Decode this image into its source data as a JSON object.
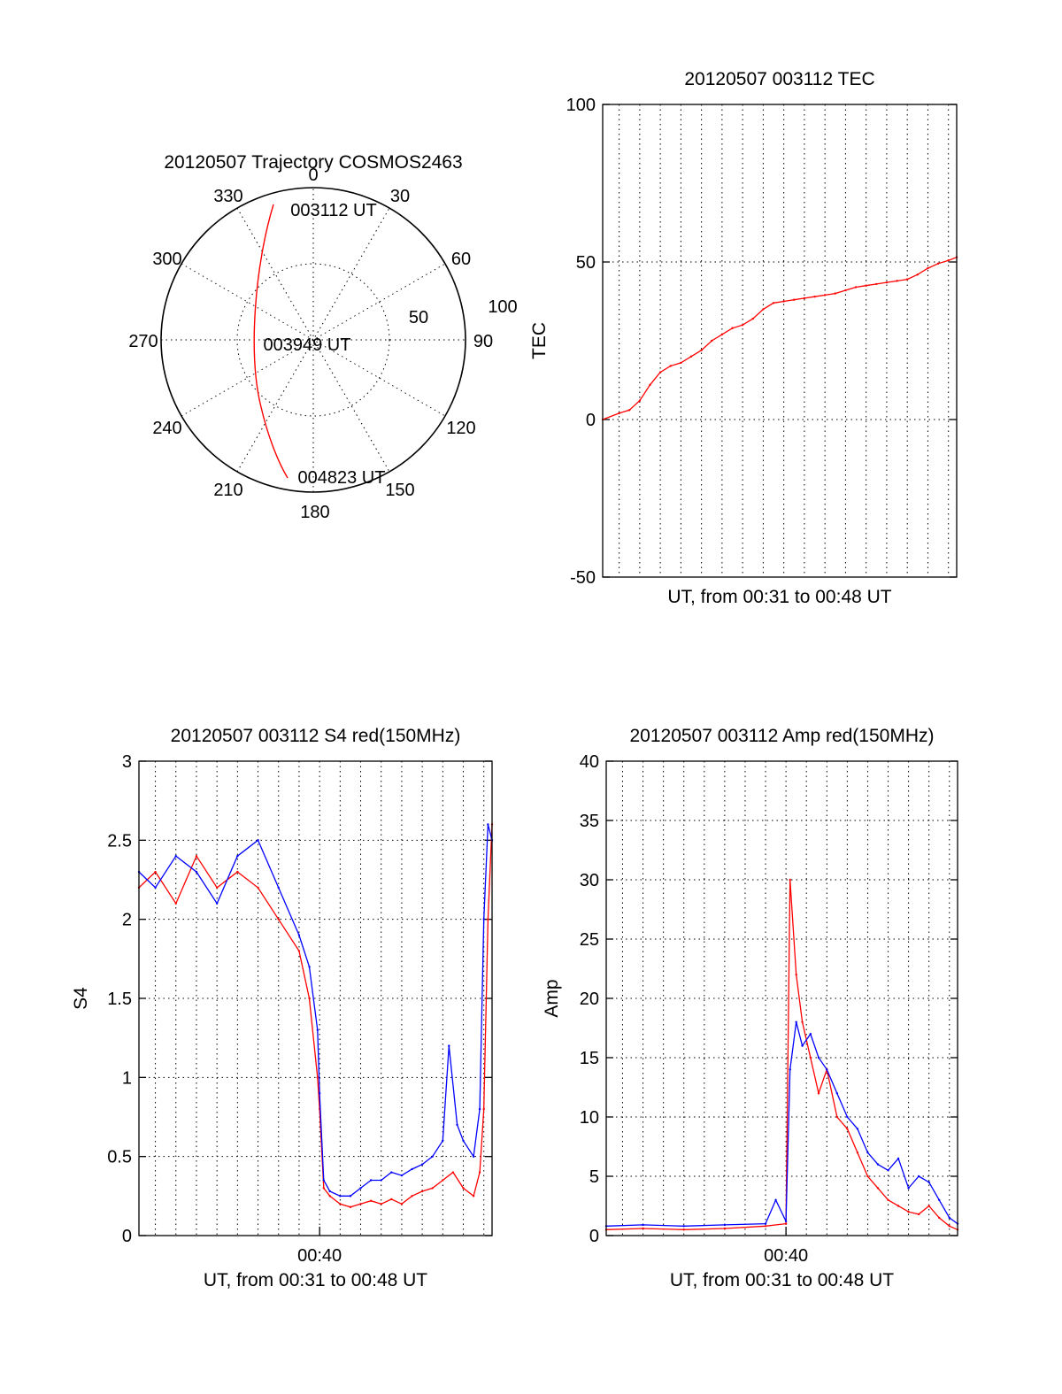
{
  "colors": {
    "red": "#ff0000",
    "blue": "#0000ff",
    "axis": "#000000",
    "background": "#ffffff"
  },
  "trajectory": {
    "title": "20120507 Trajectory COSMOS2463",
    "azimuth_labels": [
      "0",
      "30",
      "60",
      "90",
      "120",
      "150",
      "180",
      "210",
      "240",
      "270",
      "300",
      "330"
    ],
    "radius_labels": [
      "50",
      "100"
    ],
    "points": {
      "start": "003112 UT",
      "mid": "003949 UT",
      "end": "004823 UT"
    }
  },
  "chart_data": [
    {
      "id": "tec",
      "type": "line",
      "title": "20120507 003112 TEC",
      "xlabel": "UT, from 00:31 to 00:48 UT",
      "ylabel": "TEC",
      "ylim": [
        -50,
        100
      ],
      "yticks": [
        "-50",
        "0",
        "50",
        "100"
      ],
      "xlim_minutes": [
        31.2,
        48.4
      ],
      "grid": true,
      "series": [
        {
          "color": "#ff0000",
          "x": [
            31.2,
            32.0,
            32.5,
            33.0,
            33.5,
            34.0,
            34.5,
            35.0,
            35.5,
            36.0,
            36.5,
            37.0,
            37.5,
            38.0,
            38.5,
            39.0,
            39.5,
            40.0,
            40.5,
            41.0,
            41.5,
            42.0,
            42.5,
            43.0,
            43.5,
            44.0,
            44.5,
            45.0,
            45.5,
            46.0,
            46.5,
            47.0,
            47.5,
            48.0,
            48.4
          ],
          "y": [
            0,
            2,
            3,
            6,
            11,
            15,
            17,
            18,
            20,
            22,
            25,
            27,
            29,
            30,
            32,
            35,
            37,
            37.5,
            38,
            38.5,
            39,
            39.5,
            40,
            41,
            42,
            42.5,
            43,
            43.5,
            44,
            44.5,
            46,
            48,
            49.5,
            50.5,
            51.5
          ]
        }
      ]
    },
    {
      "id": "s4",
      "type": "line",
      "title": "20120507 003112 S4 red(150MHz)",
      "xlabel": "UT, from 00:31 to 00:48 UT",
      "ylabel": "S4",
      "ylim": [
        0,
        3
      ],
      "yticks": [
        "0",
        "0.5",
        "1",
        "1.5",
        "2",
        "2.5",
        "3"
      ],
      "xtick_labels": [
        "00:40"
      ],
      "xlim_minutes": [
        31.2,
        48.4
      ],
      "grid": true,
      "series": [
        {
          "color": "#ff0000",
          "x": [
            31.2,
            32.0,
            33.0,
            34.0,
            35.0,
            36.0,
            37.0,
            38.0,
            39.0,
            39.5,
            39.9,
            40.0,
            40.2,
            40.5,
            41.0,
            41.5,
            42.0,
            42.5,
            43.0,
            43.5,
            44.0,
            44.5,
            45.0,
            45.5,
            46.0,
            46.5,
            47.0,
            47.5,
            47.8,
            48.0,
            48.2,
            48.4
          ],
          "y": [
            2.2,
            2.3,
            2.1,
            2.4,
            2.2,
            2.3,
            2.2,
            2.0,
            1.8,
            1.5,
            1.0,
            0.8,
            0.3,
            0.25,
            0.2,
            0.18,
            0.2,
            0.22,
            0.2,
            0.23,
            0.2,
            0.25,
            0.28,
            0.3,
            0.35,
            0.4,
            0.3,
            0.25,
            0.4,
            0.8,
            2.0,
            2.6
          ]
        },
        {
          "color": "#0000ff",
          "x": [
            31.2,
            32.0,
            33.0,
            34.0,
            35.0,
            36.0,
            37.0,
            38.0,
            39.0,
            39.5,
            39.9,
            40.0,
            40.2,
            40.5,
            41.0,
            41.5,
            42.0,
            42.5,
            43.0,
            43.5,
            44.0,
            44.5,
            45.0,
            45.5,
            46.0,
            46.3,
            46.7,
            47.0,
            47.5,
            47.8,
            48.0,
            48.2,
            48.4
          ],
          "y": [
            2.3,
            2.2,
            2.4,
            2.3,
            2.1,
            2.4,
            2.5,
            2.2,
            1.9,
            1.7,
            1.3,
            0.9,
            0.35,
            0.28,
            0.25,
            0.25,
            0.3,
            0.35,
            0.35,
            0.4,
            0.38,
            0.42,
            0.45,
            0.5,
            0.6,
            1.2,
            0.7,
            0.6,
            0.5,
            0.8,
            2.0,
            2.6,
            2.5
          ]
        }
      ]
    },
    {
      "id": "amp",
      "type": "line",
      "title": "20120507 003112 Amp red(150MHz)",
      "xlabel": "UT, from 00:31 to 00:48 UT",
      "ylabel": "Amp",
      "ylim": [
        0,
        40
      ],
      "yticks": [
        "0",
        "5",
        "10",
        "15",
        "20",
        "25",
        "30",
        "35",
        "40"
      ],
      "xtick_labels": [
        "00:40"
      ],
      "xlim_minutes": [
        31.2,
        48.4
      ],
      "grid": true,
      "series": [
        {
          "color": "#ff0000",
          "x": [
            31.2,
            33.0,
            35.0,
            37.0,
            39.0,
            40.0,
            40.2,
            40.5,
            40.8,
            41.2,
            41.6,
            42.0,
            42.5,
            43.0,
            43.5,
            44.0,
            44.5,
            45.0,
            45.5,
            46.0,
            46.5,
            47.0,
            47.5,
            48.0,
            48.4
          ],
          "y": [
            0.5,
            0.6,
            0.5,
            0.6,
            0.8,
            1.0,
            30.0,
            22.0,
            18.0,
            15.0,
            12.0,
            14.0,
            10.0,
            9.0,
            7.0,
            5.0,
            4.0,
            3.0,
            2.5,
            2.0,
            1.8,
            2.5,
            1.5,
            0.8,
            0.5
          ]
        },
        {
          "color": "#0000ff",
          "x": [
            31.2,
            33.0,
            35.0,
            37.0,
            39.0,
            39.5,
            40.0,
            40.2,
            40.5,
            40.8,
            41.2,
            41.6,
            42.0,
            42.5,
            43.0,
            43.5,
            44.0,
            44.5,
            45.0,
            45.5,
            46.0,
            46.5,
            47.0,
            47.5,
            48.0,
            48.4
          ],
          "y": [
            0.8,
            0.9,
            0.8,
            0.9,
            1.0,
            3.0,
            1.2,
            14.0,
            18.0,
            16.0,
            17.0,
            15.0,
            14.0,
            12.0,
            10.0,
            9.0,
            7.0,
            6.0,
            5.5,
            6.5,
            4.0,
            5.0,
            4.5,
            3.0,
            1.5,
            1.0
          ]
        }
      ]
    }
  ]
}
